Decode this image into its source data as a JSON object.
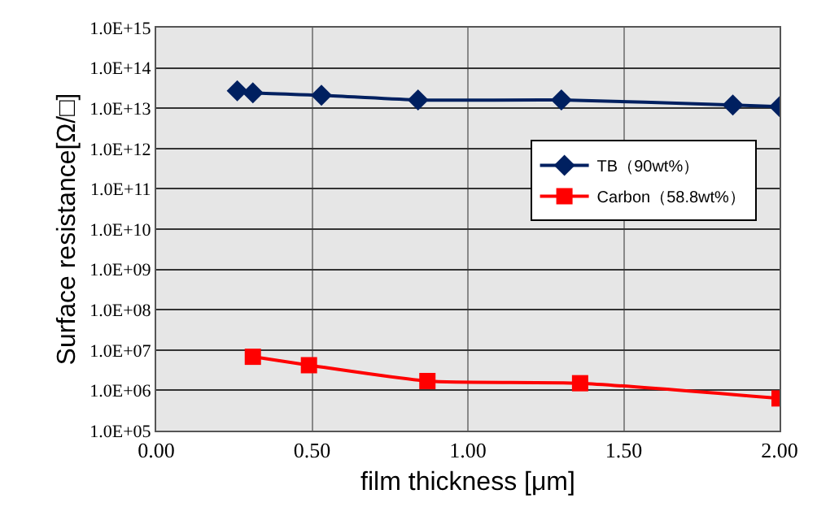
{
  "chart_data": {
    "type": "line",
    "xlabel": "film thickness [μm]",
    "ylabel": "Surface resistance[Ω/□]",
    "log": "y",
    "grid": true,
    "legend": "right",
    "line_style": "solid",
    "xlim": [
      0,
      2
    ],
    "xticks": [
      {
        "value": 0,
        "label": "0.00"
      },
      {
        "value": 0.5,
        "label": "0.50"
      },
      {
        "value": 1,
        "label": "1.00"
      },
      {
        "value": 1.5,
        "label": "1.50"
      },
      {
        "value": 2,
        "label": "2.00"
      }
    ],
    "ylim": [
      100000,
      1000000000000000
    ],
    "yticks": [
      {
        "value": 100000,
        "label": "1.0E+05"
      },
      {
        "value": 1000000,
        "label": "1.0E+06"
      },
      {
        "value": 10000000,
        "label": "1.0E+07"
      },
      {
        "value": 100000000,
        "label": "1.0E+08"
      },
      {
        "value": 1000000000,
        "label": "1.0E+09"
      },
      {
        "value": 10000000000,
        "label": "1.0E+10"
      },
      {
        "value": 100000000000,
        "label": "1.0E+11"
      },
      {
        "value": 1000000000000,
        "label": "1.0E+12"
      },
      {
        "value": 10000000000000,
        "label": "1.0E+13"
      },
      {
        "value": 100000000000000,
        "label": "1.0E+14"
      },
      {
        "value": 1000000000000000,
        "label": "1.0E+15"
      }
    ],
    "series": [
      {
        "name": "TB（90wt%）",
        "color": "#002060",
        "marker": "diamond",
        "x": [
          0.26,
          0.31,
          0.53,
          0.84,
          1.3,
          1.85,
          2.0
        ],
        "values": [
          27000000000000,
          24000000000000,
          21000000000000,
          16000000000000,
          16000000000000,
          12000000000000,
          11000000000000
        ]
      },
      {
        "name": "Carbon（58.8wt%）",
        "color": "#ff0000",
        "marker": "square",
        "x": [
          0.31,
          0.49,
          0.87,
          1.36,
          2.0
        ],
        "values": [
          6800000,
          4200000,
          1700000,
          1500000,
          630000
        ]
      }
    ]
  }
}
